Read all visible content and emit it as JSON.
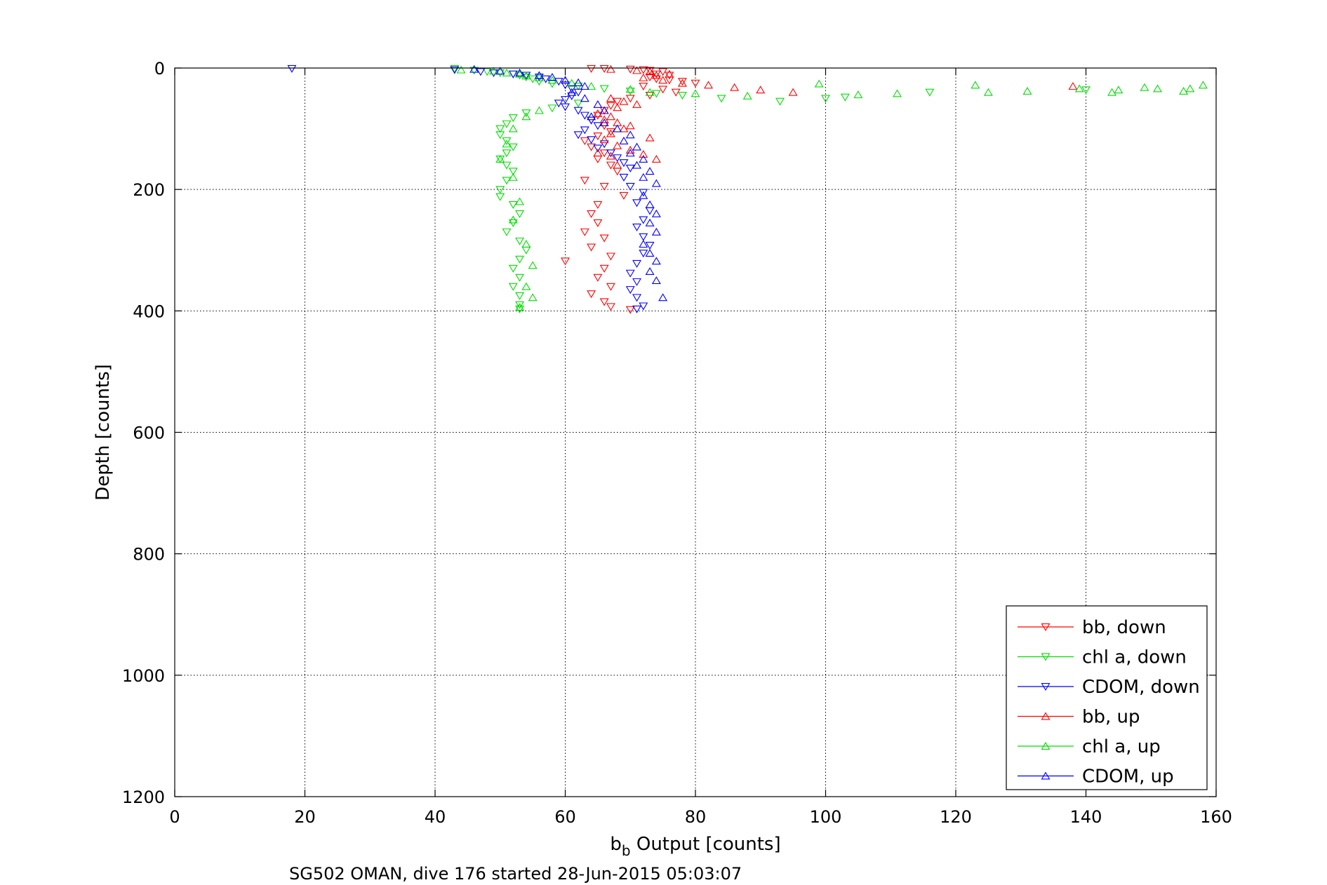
{
  "chart_data": {
    "type": "scatter",
    "xlabel_main": "b",
    "xlabel_sub": "b",
    "xlabel_rest": " Output [counts]",
    "ylabel": "Depth [counts]",
    "footer": "SG502 OMAN, dive 176 started 28-Jun-2015 05:03:07",
    "xlim": [
      0,
      160
    ],
    "ylim": [
      0,
      1200
    ],
    "y_reversed": true,
    "grid": true,
    "x_ticks": [
      "0",
      "20",
      "40",
      "60",
      "80",
      "100",
      "120",
      "140",
      "160"
    ],
    "y_ticks": [
      "0",
      "200",
      "400",
      "600",
      "800",
      "1000",
      "1200"
    ],
    "legend_position": "bottom-right",
    "series": [
      {
        "name": "bb, down",
        "color": "#ff0000",
        "marker": "triangle-down",
        "points": [
          [
            64,
            1
          ],
          [
            66,
            1
          ],
          [
            70,
            2
          ],
          [
            72,
            3
          ],
          [
            73,
            4
          ],
          [
            75,
            6
          ],
          [
            74,
            10
          ],
          [
            76,
            12
          ],
          [
            73,
            15
          ],
          [
            74,
            18
          ],
          [
            76,
            20
          ],
          [
            78,
            22
          ],
          [
            80,
            25
          ],
          [
            72,
            30
          ],
          [
            75,
            35
          ],
          [
            77,
            40
          ],
          [
            73,
            45
          ],
          [
            70,
            50
          ],
          [
            68,
            55
          ],
          [
            67,
            62
          ],
          [
            66,
            70
          ],
          [
            65,
            78
          ],
          [
            64,
            86
          ],
          [
            66,
            95
          ],
          [
            67,
            105
          ],
          [
            65,
            112
          ],
          [
            63,
            120
          ],
          [
            64,
            130
          ],
          [
            66,
            140
          ],
          [
            65,
            150
          ],
          [
            67,
            160
          ],
          [
            68,
            170
          ],
          [
            63,
            185
          ],
          [
            66,
            195
          ],
          [
            69,
            210
          ],
          [
            65,
            225
          ],
          [
            64,
            240
          ],
          [
            65,
            255
          ],
          [
            63,
            270
          ],
          [
            66,
            280
          ],
          [
            64,
            295
          ],
          [
            67,
            310
          ],
          [
            60,
            318
          ],
          [
            66,
            330
          ],
          [
            65,
            345
          ],
          [
            67,
            360
          ],
          [
            64,
            372
          ],
          [
            66,
            385
          ],
          [
            67,
            393
          ],
          [
            70,
            398
          ]
        ]
      },
      {
        "name": "chl a, down",
        "color": "#00dd00",
        "marker": "triangle-down",
        "points": [
          [
            43,
            1
          ],
          [
            46,
            4
          ],
          [
            48,
            6
          ],
          [
            50,
            8
          ],
          [
            52,
            10
          ],
          [
            53,
            12
          ],
          [
            54,
            15
          ],
          [
            55,
            18
          ],
          [
            56,
            22
          ],
          [
            58,
            26
          ],
          [
            62,
            30
          ],
          [
            66,
            34
          ],
          [
            70,
            38
          ],
          [
            74,
            42
          ],
          [
            78,
            45
          ],
          [
            84,
            50
          ],
          [
            93,
            55
          ],
          [
            100,
            50
          ],
          [
            103,
            48
          ],
          [
            116,
            40
          ],
          [
            140,
            36
          ],
          [
            62,
            58
          ],
          [
            58,
            66
          ],
          [
            54,
            74
          ],
          [
            52,
            82
          ],
          [
            51,
            92
          ],
          [
            50,
            100
          ],
          [
            50,
            110
          ],
          [
            51,
            120
          ],
          [
            52,
            130
          ],
          [
            51,
            140
          ],
          [
            50,
            150
          ],
          [
            51,
            160
          ],
          [
            52,
            170
          ],
          [
            51,
            185
          ],
          [
            50,
            200
          ],
          [
            50,
            212
          ],
          [
            52,
            225
          ],
          [
            53,
            240
          ],
          [
            52,
            255
          ],
          [
            51,
            270
          ],
          [
            53,
            285
          ],
          [
            54,
            300
          ],
          [
            53,
            315
          ],
          [
            52,
            330
          ],
          [
            53,
            345
          ],
          [
            52,
            360
          ],
          [
            53,
            375
          ],
          [
            53,
            390
          ],
          [
            53,
            397
          ]
        ]
      },
      {
        "name": "CDOM, down",
        "color": "#0000ff",
        "marker": "triangle-down",
        "points": [
          [
            18,
            1
          ],
          [
            43,
            3
          ],
          [
            47,
            6
          ],
          [
            49,
            8
          ],
          [
            52,
            10
          ],
          [
            54,
            12
          ],
          [
            56,
            15
          ],
          [
            57,
            18
          ],
          [
            59,
            22
          ],
          [
            60,
            28
          ],
          [
            61,
            34
          ],
          [
            62,
            40
          ],
          [
            61,
            46
          ],
          [
            60,
            52
          ],
          [
            59,
            58
          ],
          [
            60,
            64
          ],
          [
            62,
            70
          ],
          [
            63,
            78
          ],
          [
            64,
            86
          ],
          [
            65,
            95
          ],
          [
            63,
            102
          ],
          [
            62,
            110
          ],
          [
            64,
            118
          ],
          [
            66,
            125
          ],
          [
            65,
            132
          ],
          [
            67,
            140
          ],
          [
            68,
            148
          ],
          [
            69,
            156
          ],
          [
            70,
            165
          ],
          [
            69,
            180
          ],
          [
            70,
            195
          ],
          [
            72,
            205
          ],
          [
            71,
            222
          ],
          [
            73,
            235
          ],
          [
            72,
            250
          ],
          [
            71,
            262
          ],
          [
            72,
            278
          ],
          [
            73,
            292
          ],
          [
            72,
            305
          ],
          [
            71,
            322
          ],
          [
            70,
            338
          ],
          [
            71,
            352
          ],
          [
            70,
            365
          ],
          [
            71,
            378
          ],
          [
            72,
            392
          ],
          [
            71,
            397
          ]
        ]
      },
      {
        "name": "bb, up",
        "color": "#ff0000",
        "marker": "triangle-up",
        "points": [
          [
            67,
            2
          ],
          [
            71,
            4
          ],
          [
            73,
            6
          ],
          [
            76,
            10
          ],
          [
            74,
            12
          ],
          [
            72,
            16
          ],
          [
            75,
            20
          ],
          [
            78,
            25
          ],
          [
            82,
            28
          ],
          [
            86,
            32
          ],
          [
            90,
            36
          ],
          [
            95,
            40
          ],
          [
            138,
            30
          ],
          [
            67,
            50
          ],
          [
            69,
            55
          ],
          [
            71,
            60
          ],
          [
            68,
            65
          ],
          [
            66,
            70
          ],
          [
            65,
            75
          ],
          [
            67,
            80
          ],
          [
            66,
            85
          ],
          [
            68,
            90
          ],
          [
            70,
            95
          ],
          [
            69,
            100
          ],
          [
            67,
            108
          ],
          [
            66,
            118
          ],
          [
            68,
            128
          ],
          [
            70,
            135
          ],
          [
            72,
            142
          ],
          [
            74,
            150
          ],
          [
            68,
            160
          ],
          [
            73,
            115
          ],
          [
            65,
            140
          ],
          [
            67,
            145
          ]
        ]
      },
      {
        "name": "chl a, up",
        "color": "#00dd00",
        "marker": "triangle-up",
        "points": [
          [
            44,
            3
          ],
          [
            49,
            5
          ],
          [
            51,
            8
          ],
          [
            53,
            10
          ],
          [
            54,
            13
          ],
          [
            56,
            16
          ],
          [
            58,
            20
          ],
          [
            61,
            25
          ],
          [
            64,
            30
          ],
          [
            70,
            35
          ],
          [
            73,
            40
          ],
          [
            80,
            42
          ],
          [
            88,
            46
          ],
          [
            99,
            26
          ],
          [
            105,
            44
          ],
          [
            111,
            42
          ],
          [
            123,
            28
          ],
          [
            125,
            40
          ],
          [
            131,
            38
          ],
          [
            139,
            34
          ],
          [
            144,
            40
          ],
          [
            145,
            36
          ],
          [
            149,
            32
          ],
          [
            151,
            34
          ],
          [
            155,
            38
          ],
          [
            156,
            34
          ],
          [
            158,
            28
          ],
          [
            56,
            70
          ],
          [
            54,
            80
          ],
          [
            52,
            100
          ],
          [
            51,
            125
          ],
          [
            50,
            150
          ],
          [
            52,
            180
          ],
          [
            53,
            220
          ],
          [
            52,
            250
          ],
          [
            54,
            290
          ],
          [
            55,
            325
          ],
          [
            54,
            360
          ],
          [
            55,
            378
          ],
          [
            53,
            394
          ]
        ]
      },
      {
        "name": "CDOM, up",
        "color": "#0000ff",
        "marker": "triangle-up",
        "points": [
          [
            46,
            2
          ],
          [
            50,
            5
          ],
          [
            53,
            8
          ],
          [
            56,
            12
          ],
          [
            58,
            15
          ],
          [
            60,
            20
          ],
          [
            62,
            24
          ],
          [
            63,
            30
          ],
          [
            61,
            40
          ],
          [
            63,
            50
          ],
          [
            65,
            60
          ],
          [
            66,
            70
          ],
          [
            64,
            80
          ],
          [
            66,
            90
          ],
          [
            68,
            100
          ],
          [
            70,
            110
          ],
          [
            69,
            120
          ],
          [
            71,
            130
          ],
          [
            70,
            140
          ],
          [
            72,
            150
          ],
          [
            71,
            160
          ],
          [
            73,
            170
          ],
          [
            72,
            180
          ],
          [
            74,
            190
          ],
          [
            72,
            210
          ],
          [
            73,
            225
          ],
          [
            74,
            240
          ],
          [
            73,
            255
          ],
          [
            74,
            270
          ],
          [
            72,
            290
          ],
          [
            73,
            305
          ],
          [
            74,
            318
          ],
          [
            73,
            335
          ],
          [
            74,
            350
          ],
          [
            75,
            378
          ]
        ]
      }
    ]
  }
}
